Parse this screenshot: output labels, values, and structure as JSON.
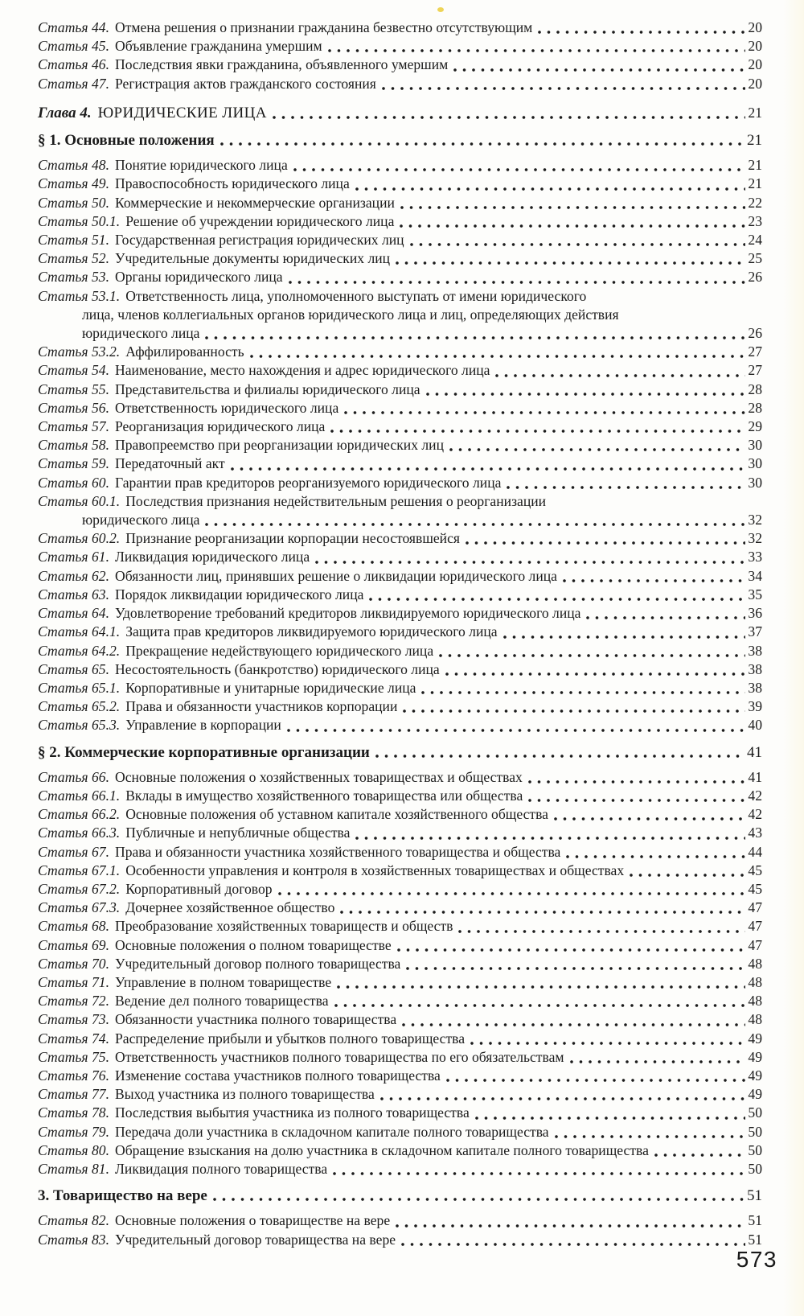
{
  "page": {
    "background_color": "#fdfdfb",
    "text_color": "#1b1b1b",
    "footer_page_number": "573",
    "artifact_dot_color": "#eccf45"
  },
  "toc": {
    "leading_entries": [
      {
        "num": "Статья 44.",
        "lines": [
          "Отмена решения о признании гражданина безвестно отсутствующим"
        ],
        "page": "20"
      },
      {
        "num": "Статья 45.",
        "lines": [
          "Объявление гражданина умершим"
        ],
        "page": "20"
      },
      {
        "num": "Статья 46.",
        "lines": [
          "Последствия явки гражданина, объявленного умершим"
        ],
        "page": "20"
      },
      {
        "num": "Статья 47.",
        "lines": [
          "Регистрация актов гражданского состояния"
        ],
        "page": "20"
      }
    ],
    "chapter": {
      "label": "Глава 4.",
      "title": "ЮРИДИЧЕСКИЕ ЛИЦА",
      "page": "21"
    },
    "sections": [
      {
        "heading": "§ 1. Основные положения",
        "page": "21",
        "entries": [
          {
            "num": "Статья 48.",
            "lines": [
              "Понятие юридического лица"
            ],
            "page": "21"
          },
          {
            "num": "Статья 49.",
            "lines": [
              "Правоспособность юридического лица"
            ],
            "page": "21"
          },
          {
            "num": "Статья 50.",
            "lines": [
              "Коммерческие и некоммерческие организации"
            ],
            "page": "22"
          },
          {
            "num": "Статья 50.1.",
            "lines": [
              "Решение об учреждении юридического лица"
            ],
            "page": "23"
          },
          {
            "num": "Статья 51.",
            "lines": [
              "Государственная регистрация юридических лиц"
            ],
            "page": "24"
          },
          {
            "num": "Статья 52.",
            "lines": [
              "Учредительные документы юридических лиц"
            ],
            "page": "25"
          },
          {
            "num": "Статья 53.",
            "lines": [
              "Органы юридического лица"
            ],
            "page": "26"
          },
          {
            "num": "Статья 53.1.",
            "lines": [
              "Ответственность лица, уполномоченного выступать от имени юридического",
              "лица, членов коллегиальных органов юридического лица и лиц, определяющих действия",
              "юридического лица"
            ],
            "page": "26"
          },
          {
            "num": "Статья 53.2.",
            "lines": [
              "Аффилированность"
            ],
            "page": "27"
          },
          {
            "num": "Статья 54.",
            "lines": [
              "Наименование, место нахождения и адрес юридического лица"
            ],
            "page": "27"
          },
          {
            "num": "Статья 55.",
            "lines": [
              "Представительства и филиалы юридического лица"
            ],
            "page": "28"
          },
          {
            "num": "Статья 56.",
            "lines": [
              "Ответственность юридического лица"
            ],
            "page": "28"
          },
          {
            "num": "Статья 57.",
            "lines": [
              "Реорганизация юридического лица"
            ],
            "page": "29"
          },
          {
            "num": "Статья 58.",
            "lines": [
              "Правопреемство при реорганизации юридических лиц"
            ],
            "page": "30"
          },
          {
            "num": "Статья 59.",
            "lines": [
              "Передаточный акт"
            ],
            "page": "30"
          },
          {
            "num": "Статья 60.",
            "lines": [
              "Гарантии прав кредиторов реорганизуемого юридического лица"
            ],
            "page": "30"
          },
          {
            "num": "Статья 60.1.",
            "lines": [
              "Последствия признания недействительным решения о реорганизации",
              "юридического лица"
            ],
            "page": "32"
          },
          {
            "num": "Статья 60.2.",
            "lines": [
              "Признание реорганизации корпорации несостоявшейся"
            ],
            "page": "32"
          },
          {
            "num": "Статья 61.",
            "lines": [
              "Ликвидация юридического лица"
            ],
            "page": "33"
          },
          {
            "num": "Статья 62.",
            "lines": [
              "Обязанности лиц, принявших решение о ликвидации юридического лица"
            ],
            "page": "34"
          },
          {
            "num": "Статья 63.",
            "lines": [
              "Порядок ликвидации юридического лица"
            ],
            "page": "35"
          },
          {
            "num": "Статья 64.",
            "lines": [
              "Удовлетворение требований кредиторов ликвидируемого юридического лица"
            ],
            "page": "36"
          },
          {
            "num": "Статья 64.1.",
            "lines": [
              "Защита прав кредиторов ликвидируемого юридического лица"
            ],
            "page": "37"
          },
          {
            "num": "Статья 64.2.",
            "lines": [
              "Прекращение недействующего юридического лица"
            ],
            "page": "38"
          },
          {
            "num": "Статья 65.",
            "lines": [
              "Несостоятельность (банкротство) юридического лица"
            ],
            "page": "38"
          },
          {
            "num": "Статья 65.1.",
            "lines": [
              "Корпоративные и унитарные юридические лица"
            ],
            "page": "38"
          },
          {
            "num": "Статья 65.2.",
            "lines": [
              "Права и обязанности участников корпорации"
            ],
            "page": "39"
          },
          {
            "num": "Статья 65.3.",
            "lines": [
              "Управление в корпорации"
            ],
            "page": "40"
          }
        ]
      },
      {
        "heading": "§ 2. Коммерческие корпоративные организации",
        "page": "41",
        "entries": [
          {
            "num": "Статья 66.",
            "lines": [
              "Основные положения о хозяйственных товариществах и обществах"
            ],
            "page": "41"
          },
          {
            "num": "Статья 66.1.",
            "lines": [
              "Вклады в имущество хозяйственного товарищества или общества"
            ],
            "page": "42"
          },
          {
            "num": "Статья 66.2.",
            "lines": [
              "Основные положения об уставном капитале хозяйственного общества"
            ],
            "page": "42"
          },
          {
            "num": "Статья 66.3.",
            "lines": [
              "Публичные и непубличные общества"
            ],
            "page": "43"
          },
          {
            "num": "Статья 67.",
            "lines": [
              "Права и обязанности участника хозяйственного товарищества и общества"
            ],
            "page": "44"
          },
          {
            "num": "Статья 67.1.",
            "lines": [
              "Особенности управления и контроля в хозяйственных товариществах и обществах"
            ],
            "page": "45"
          },
          {
            "num": "Статья 67.2.",
            "lines": [
              "Корпоративный договор"
            ],
            "page": "45"
          },
          {
            "num": "Статья 67.3.",
            "lines": [
              "Дочернее хозяйственное общество"
            ],
            "page": "47"
          },
          {
            "num": "Статья 68.",
            "lines": [
              "Преобразование хозяйственных товариществ и обществ"
            ],
            "page": "47"
          },
          {
            "num": "Статья 69.",
            "lines": [
              "Основные положения о полном товариществе"
            ],
            "page": "47"
          },
          {
            "num": "Статья 70.",
            "lines": [
              "Учредительный договор полного товарищества"
            ],
            "page": "48"
          },
          {
            "num": "Статья 71.",
            "lines": [
              "Управление в полном товариществе"
            ],
            "page": "48"
          },
          {
            "num": "Статья 72.",
            "lines": [
              "Ведение дел полного товарищества"
            ],
            "page": "48"
          },
          {
            "num": "Статья 73.",
            "lines": [
              "Обязанности участника полного товарищества"
            ],
            "page": "48"
          },
          {
            "num": "Статья 74.",
            "lines": [
              "Распределение прибыли и убытков полного товарищества"
            ],
            "page": "49"
          },
          {
            "num": "Статья 75.",
            "lines": [
              "Ответственность участников полного товарищества по его обязательствам"
            ],
            "page": "49"
          },
          {
            "num": "Статья 76.",
            "lines": [
              "Изменение состава участников полного товарищества"
            ],
            "page": "49"
          },
          {
            "num": "Статья 77.",
            "lines": [
              "Выход участника из полного товарищества"
            ],
            "page": "49"
          },
          {
            "num": "Статья 78.",
            "lines": [
              "Последствия выбытия участника из полного товарищества"
            ],
            "page": "50"
          },
          {
            "num": "Статья 79.",
            "lines": [
              "Передача доли участника в складочном капитале полного товарищества"
            ],
            "page": "50"
          },
          {
            "num": "Статья 80.",
            "lines": [
              "Обращение взыскания на долю участника в складочном капитале полного товарищества"
            ],
            "page": "50"
          },
          {
            "num": "Статья 81.",
            "lines": [
              "Ликвидация полного товарищества"
            ],
            "page": "50"
          }
        ]
      },
      {
        "heading": "3. Товарищество на вере",
        "page": "51",
        "entries": [
          {
            "num": "Статья 82.",
            "lines": [
              "Основные положения о товариществе на вере"
            ],
            "page": "51"
          },
          {
            "num": "Статья 83.",
            "lines": [
              "Учредительный договор товарищества на вере"
            ],
            "page": "51"
          }
        ]
      }
    ]
  }
}
